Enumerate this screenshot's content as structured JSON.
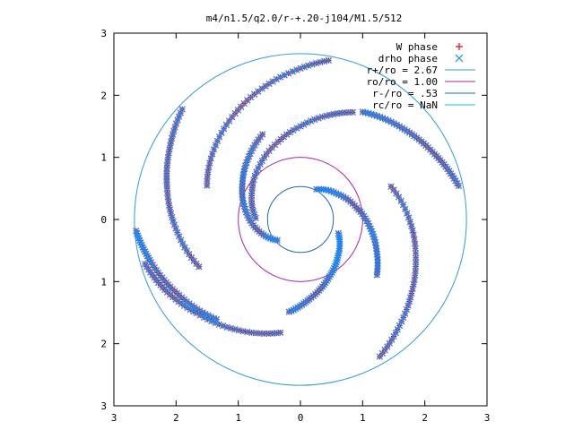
{
  "chart_data": {
    "type": "scatter",
    "title": "m4/n1.5/q2.0/r-+.20-j104/M1.5/512",
    "xlabel": "",
    "ylabel": "",
    "xlim": [
      -3,
      3
    ],
    "ylim": [
      -3,
      3
    ],
    "x_ticks": [
      -3,
      -2,
      -1,
      0,
      1,
      2,
      3
    ],
    "y_ticks": [
      -3,
      -2,
      -1,
      0,
      1,
      2,
      3
    ],
    "x_tick_labels": [
      "3",
      "2",
      "1",
      "0",
      "1",
      "2",
      "3"
    ],
    "y_tick_labels": [
      "3",
      "2",
      "1",
      "0",
      "1",
      "2",
      "3"
    ],
    "grid": false,
    "legend_position": "top-right",
    "legend": [
      {
        "label": "W phase",
        "marker": "plus",
        "color": "#ff0000"
      },
      {
        "label": "drho phase",
        "marker": "cross",
        "color": "#2288ee"
      },
      {
        "label": "r+/ro = 2.67",
        "marker": "line",
        "color": "#3399dd"
      },
      {
        "label": "ro/ro = 1.00",
        "marker": "line",
        "color": "#aa22aa"
      },
      {
        "label": "r-/ro = .53",
        "marker": "line",
        "color": "#2266bb"
      },
      {
        "label": "rc/ro = NaN",
        "marker": "line",
        "color": "#22bbcc"
      }
    ],
    "circles": [
      {
        "name": "r+/ro = 2.67",
        "radius": 2.67,
        "color": "#3399dd"
      },
      {
        "name": "ro/ro = 1.00",
        "radius": 1.0,
        "color": "#aa22aa"
      },
      {
        "name": "r-/ro = .53",
        "radius": 0.53,
        "color": "#2266bb"
      }
    ],
    "series": [
      {
        "name": "W phase",
        "marker": "plus",
        "color": "#ff0000",
        "arms": [
          {
            "r": [
              0.55,
              0.72,
              0.92,
              1.12,
              1.32,
              1.52
            ],
            "theta_deg": [
              62,
              35,
              12,
              -6,
              -22,
              -36
            ]
          },
          {
            "r": [
              0.72,
              0.9,
              1.1,
              1.3,
              1.5,
              1.72,
              1.92
            ],
            "theta_deg": [
              178,
              150,
              126,
              106,
              90,
              76,
              64
            ]
          },
          {
            "r": [
              0.5,
              0.7,
              0.9,
              1.1,
              1.3,
              1.5
            ],
            "theta_deg": [
              -138,
              -165,
              -190,
              -212,
              -230,
              -246
            ]
          },
          {
            "r": [
              0.65,
              0.85,
              1.05,
              1.28,
              1.5
            ],
            "theta_deg": [
              -20,
              -45,
              -65,
              -83,
              -97
            ]
          },
          {
            "r": [
              1.6,
              1.8,
              2.0,
              2.2,
              2.4,
              2.6
            ],
            "theta_deg": [
              160,
              140,
              122,
              106,
              92,
              80
            ]
          },
          {
            "r": [
              1.55,
              1.75,
              1.95,
              2.15,
              2.35,
              2.55
            ],
            "theta_deg": [
              20,
              0,
              -18,
              -34,
              -48,
              -60
            ]
          },
          {
            "r": [
              1.8,
              2.0,
              2.2,
              2.4,
              2.6
            ],
            "theta_deg": [
              205,
              185,
              167,
              151,
              137
            ]
          },
          {
            "r": [
              1.85,
              2.05,
              2.25,
              2.45,
              2.6
            ],
            "theta_deg": [
              -100,
              -120,
              -138,
              -152,
              -164
            ]
          },
          {
            "r": [
              2.1,
              2.3,
              2.5,
              2.65
            ],
            "theta_deg": [
              230,
              212,
              196,
              184
            ]
          },
          {
            "r": [
              2.0,
              2.2,
              2.4,
              2.6
            ],
            "theta_deg": [
              60,
              42,
              26,
              12
            ]
          }
        ]
      },
      {
        "name": "drho phase",
        "marker": "cross",
        "color": "#2288ee",
        "arms": [
          {
            "r": [
              0.55,
              0.72,
              0.92,
              1.12,
              1.32,
              1.52
            ],
            "theta_deg": [
              62,
              35,
              12,
              -6,
              -22,
              -36
            ]
          },
          {
            "r": [
              0.72,
              0.9,
              1.1,
              1.3,
              1.5,
              1.72,
              1.92
            ],
            "theta_deg": [
              178,
              150,
              126,
              106,
              90,
              76,
              64
            ]
          },
          {
            "r": [
              0.5,
              0.7,
              0.9,
              1.1,
              1.3,
              1.5
            ],
            "theta_deg": [
              -138,
              -165,
              -190,
              -212,
              -230,
              -246
            ]
          },
          {
            "r": [
              0.65,
              0.85,
              1.05,
              1.28,
              1.5
            ],
            "theta_deg": [
              -20,
              -45,
              -65,
              -83,
              -97
            ]
          },
          {
            "r": [
              1.6,
              1.8,
              2.0,
              2.2,
              2.4,
              2.6
            ],
            "theta_deg": [
              160,
              140,
              122,
              106,
              92,
              80
            ]
          },
          {
            "r": [
              1.55,
              1.75,
              1.95,
              2.15,
              2.35,
              2.55
            ],
            "theta_deg": [
              20,
              0,
              -18,
              -34,
              -48,
              -60
            ]
          },
          {
            "r": [
              1.8,
              2.0,
              2.2,
              2.4,
              2.6
            ],
            "theta_deg": [
              205,
              185,
              167,
              151,
              137
            ]
          },
          {
            "r": [
              1.85,
              2.05,
              2.25,
              2.45,
              2.6
            ],
            "theta_deg": [
              -100,
              -120,
              -138,
              -152,
              -164
            ]
          },
          {
            "r": [
              2.1,
              2.3,
              2.5,
              2.65
            ],
            "theta_deg": [
              230,
              212,
              196,
              184
            ]
          },
          {
            "r": [
              2.0,
              2.2,
              2.4,
              2.6
            ],
            "theta_deg": [
              60,
              42,
              26,
              12
            ]
          }
        ]
      }
    ]
  }
}
